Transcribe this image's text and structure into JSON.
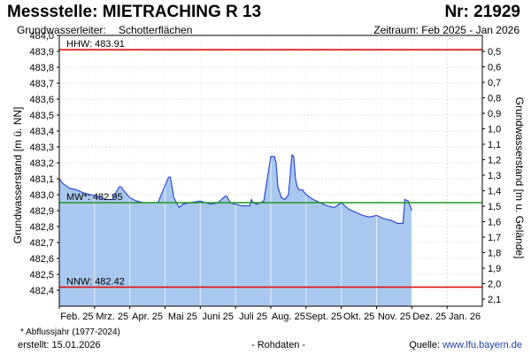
{
  "header": {
    "title": "Messstelle: MIETRACHING R 13",
    "nr": "Nr: 21929",
    "aquifer_label": "Grundwasserleiter:",
    "aquifer_value": "Schotterflächen",
    "period": "Zeitraum: Feb 2025 - Jan 2026"
  },
  "footer": {
    "note": "* Abflussjahr (1977-2024)",
    "created": "erstellt:  15.01.2026",
    "raw": "- Rohdaten -",
    "source_label": "Quelle:",
    "source_link": "www.lfu.bayern.de"
  },
  "colors": {
    "fill": "#a9c8ef",
    "line": "#1f3fd8",
    "hhw": "#e01010",
    "nnw": "#e01010",
    "mw": "#1f9a1f",
    "grid": "#c8c8c8"
  },
  "chart_data": {
    "type": "area",
    "title": "",
    "ylabel_left": "Grundwasserstand [m ü. NN]",
    "ylabel_right": "Grundwasserstand [m u. Gelände]",
    "ylim": [
      482.3,
      484.0
    ],
    "y_ticks": [
      "484,0",
      "483,9",
      "483,8",
      "483,7",
      "483,6",
      "483,5",
      "483,4",
      "483,3",
      "483,2",
      "483,1",
      "483,0",
      "482,9",
      "482,8",
      "482,7",
      "482,6",
      "482,5",
      "482,4"
    ],
    "y2_ticks": [
      "0,5",
      "0,6",
      "0,7",
      "0,8",
      "0,9",
      "1,0",
      "1,1",
      "1,2",
      "1,3",
      "1,4",
      "1,5",
      "1,6",
      "1,7",
      "1,8",
      "1,9",
      "2,0",
      "2,1"
    ],
    "x_ticks": [
      "Feb. 25",
      "Mrz. 25",
      "Apr. 25",
      "Mai 25",
      "Juni 25",
      "Juli 25",
      "Aug. 25",
      "Sept. 25",
      "Okt. 25",
      "Nov. 25",
      "Dez. 25",
      "Jan. 26"
    ],
    "grid": true,
    "x_unit": "Monat (Feb 2025 = 0)",
    "reference_lines": [
      {
        "label": "HHW: 483.91",
        "value": 483.91
      },
      {
        "label": "MW*: 482.95",
        "value": 482.95
      },
      {
        "label": "NNW: 482.42",
        "value": 482.42
      }
    ],
    "series": [
      {
        "x": [
          0.0,
          0.1,
          0.3,
          0.5,
          0.7,
          0.9,
          1.1,
          1.3,
          1.5,
          1.7,
          1.75,
          1.85,
          2.0,
          2.2,
          2.4,
          2.8,
          3.1,
          3.15,
          3.25,
          3.4,
          3.5,
          3.7,
          4.0,
          4.3,
          4.5,
          4.7,
          4.75,
          4.85,
          5.0,
          5.2,
          5.4,
          5.45,
          5.5,
          5.6,
          5.8,
          6.0,
          6.1,
          6.15,
          6.2,
          6.3,
          6.4,
          6.5,
          6.6,
          6.65,
          6.7,
          6.75,
          6.8,
          6.9,
          7.0,
          7.2,
          7.4,
          7.6,
          7.8,
          8.0,
          8.2,
          8.3,
          8.4,
          8.6,
          8.8,
          9.0,
          9.2,
          9.4,
          9.6,
          9.75,
          9.8,
          9.9,
          10.0
        ],
        "values": [
          483.1,
          483.07,
          483.04,
          483.03,
          483.01,
          483.0,
          482.99,
          482.97,
          482.97,
          483.05,
          483.05,
          483.02,
          482.98,
          482.96,
          482.95,
          482.95,
          483.11,
          483.11,
          482.98,
          482.92,
          482.94,
          482.95,
          482.96,
          482.94,
          482.95,
          482.99,
          482.99,
          482.95,
          482.94,
          482.93,
          482.93,
          482.97,
          482.95,
          482.94,
          482.96,
          483.24,
          483.24,
          483.2,
          483.05,
          482.98,
          482.97,
          483.0,
          483.25,
          483.24,
          483.1,
          483.05,
          483.03,
          483.03,
          483.0,
          482.97,
          482.95,
          482.93,
          482.92,
          482.95,
          482.91,
          482.9,
          482.89,
          482.87,
          482.86,
          482.87,
          482.85,
          482.84,
          482.82,
          482.82,
          482.97,
          482.96,
          482.9
        ]
      }
    ]
  }
}
